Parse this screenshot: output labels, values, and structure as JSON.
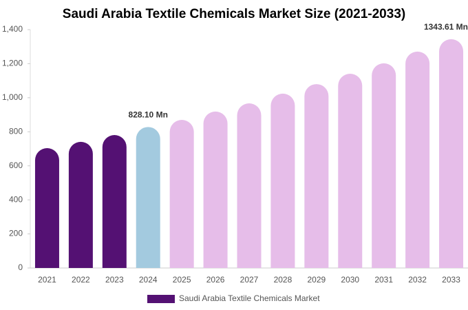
{
  "chart_data": {
    "type": "bar",
    "title": "Saudi Arabia Textile Chemicals Market Size (2021-2033)",
    "categories": [
      "2021",
      "2022",
      "2023",
      "2024",
      "2025",
      "2026",
      "2027",
      "2028",
      "2029",
      "2030",
      "2031",
      "2032",
      "2033"
    ],
    "series": [
      {
        "name": "Saudi Arabia Textile Chemicals Market",
        "color": "#541173",
        "values": [
          704,
          741,
          781,
          828.1,
          870,
          919,
          967,
          1024,
          1080,
          1141,
          1202,
          1271,
          1343.61
        ],
        "value_labels": [
          null,
          null,
          null,
          "828.10 Mn",
          null,
          null,
          null,
          null,
          null,
          null,
          null,
          null,
          "1343.61 Mn"
        ],
        "colors": [
          "#541173",
          "#541173",
          "#541173",
          "#a3cadf",
          "#e6bde9",
          "#e6bde9",
          "#e6bde9",
          "#e6bde9",
          "#e6bde9",
          "#e6bde9",
          "#e6bde9",
          "#e6bde9",
          "#e6bde9"
        ]
      }
    ],
    "ylim": [
      0,
      1400
    ],
    "yticks": [
      0,
      200,
      400,
      600,
      800,
      {
        "value": 1000,
        "label": "1,000"
      },
      {
        "value": 1200,
        "label": "1,200"
      },
      {
        "value": 1400,
        "label": "1,400"
      }
    ],
    "grid": false
  }
}
